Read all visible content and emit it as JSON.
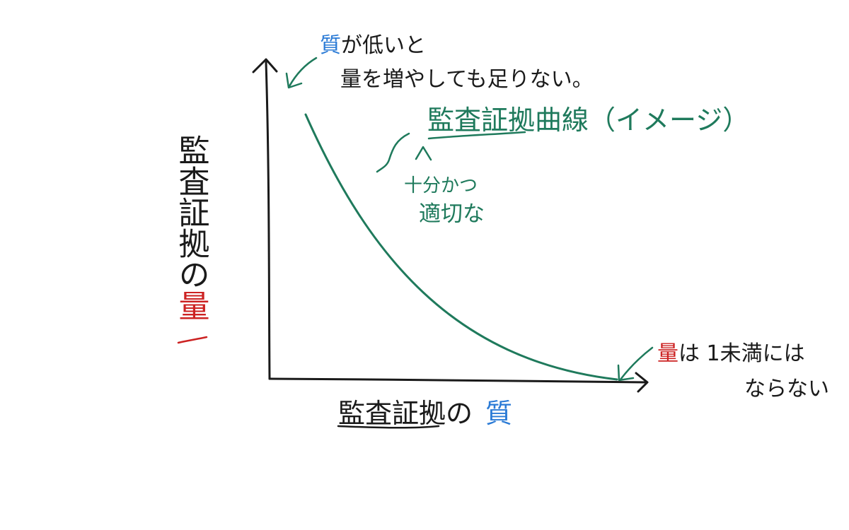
{
  "colors": {
    "ink": "#1a1a1a",
    "curve": "#1f7a5c",
    "accent_blue": "#2b7bd6",
    "accent_red": "#cc2222"
  },
  "top_note": {
    "word_quality": "質",
    "line1_rest": "が低いと",
    "line2": "量を増やしても足りない。"
  },
  "curve_label": {
    "title": "監査証拠曲線（イメージ）",
    "note_line1": "十分かつ",
    "note_line2": "適切な"
  },
  "right_note": {
    "word_quantity": "量",
    "line1_rest": "は 1未満には",
    "line2": "ならない"
  },
  "y_axis": {
    "label_main": "監査証拠の",
    "label_accent": "量"
  },
  "x_axis": {
    "label_main": "監査証拠の",
    "label_accent": "質"
  },
  "diagram": {
    "curve_shape": "decreasing convex curve from upper-left to lower-right, touching the x-axis at the right end",
    "arrows": [
      "top-note-arrow pointing to curve start",
      "right-note-arrow pointing to curve end"
    ]
  }
}
